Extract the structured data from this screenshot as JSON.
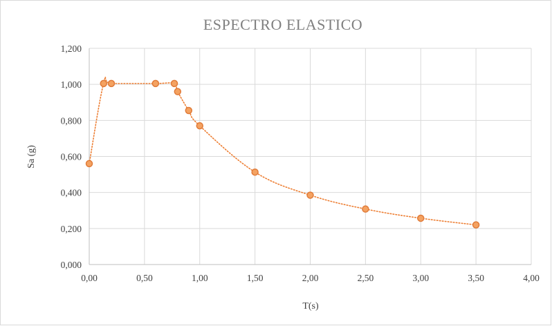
{
  "chart_data": {
    "type": "scatter",
    "title": "ESPECTRO  ELASTICO",
    "xlabel": "T(s)",
    "ylabel": "Sa (g)",
    "xlim": [
      0,
      4
    ],
    "ylim": [
      0,
      1.2
    ],
    "x_ticks": [
      "0,00",
      "0,50",
      "1,00",
      "1,50",
      "2,00",
      "2,50",
      "3,00",
      "3,50",
      "4,00"
    ],
    "y_ticks": [
      "0,000",
      "0,200",
      "0,400",
      "0,600",
      "0,800",
      "1,000",
      "1,200"
    ],
    "grid": true,
    "legend": false,
    "line_style": "dotted",
    "colors": {
      "marker_fill": "#f4a261",
      "marker_stroke": "#e07b39",
      "line": "#ed7d31",
      "grid": "#d9d9d9",
      "axis": "#bfbfbf"
    },
    "series": [
      {
        "x": [
          0.0,
          0.13,
          0.2,
          0.6,
          0.77,
          0.8,
          0.9,
          1.0,
          1.5,
          2.0,
          2.5,
          3.0,
          3.5
        ],
        "y": [
          0.56,
          1.005,
          1.005,
          1.005,
          1.005,
          0.96,
          0.855,
          0.77,
          0.513,
          0.385,
          0.308,
          0.257,
          0.22
        ]
      }
    ]
  }
}
